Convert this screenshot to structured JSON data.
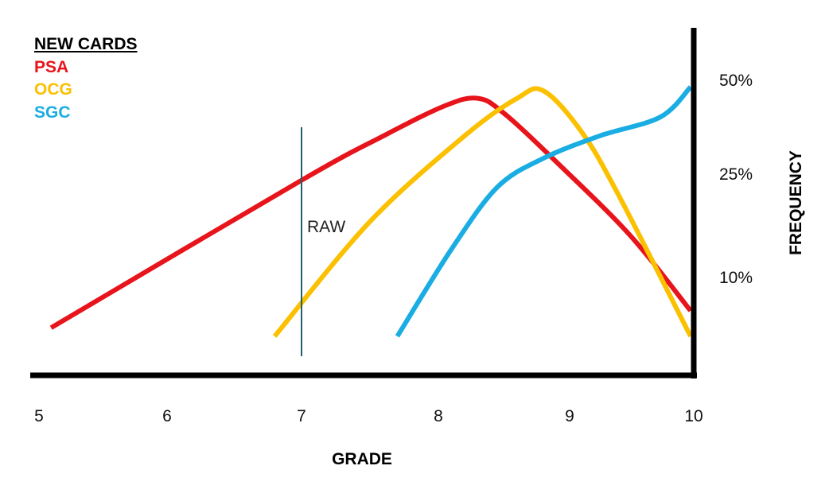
{
  "chart_data": {
    "type": "line",
    "xlabel": "GRADE",
    "ylabel": "FREQUENCY",
    "xlim": [
      5,
      10
    ],
    "x_ticks": [
      "5",
      "6",
      "7",
      "8",
      "9",
      "10"
    ],
    "y_ticks": [
      "10%",
      "25%",
      "50%"
    ],
    "legend_title": "NEW CARDS",
    "legend_position": "top-left",
    "annotation": {
      "label": "RAW",
      "x": 7
    },
    "series": [
      {
        "name": "PSA",
        "color": "#e8141b",
        "points": [
          [
            5.1,
            4
          ],
          [
            7,
            24
          ],
          [
            7.6,
            35
          ],
          [
            8.05,
            43
          ],
          [
            8.3,
            45
          ],
          [
            8.5,
            41
          ],
          [
            8.9,
            28
          ],
          [
            9.5,
            16
          ],
          [
            10,
            6
          ]
        ]
      },
      {
        "name": "OCG",
        "color": "#fbc000",
        "points": [
          [
            6.8,
            3
          ],
          [
            7.5,
            18
          ],
          [
            8.2,
            35
          ],
          [
            8.6,
            45
          ],
          [
            8.8,
            47
          ],
          [
            9.1,
            36
          ],
          [
            9.4,
            22
          ],
          [
            10,
            3
          ]
        ]
      },
      {
        "name": "SGC",
        "color": "#1aade3",
        "points": [
          [
            7.7,
            3
          ],
          [
            8.1,
            14
          ],
          [
            8.45,
            23
          ],
          [
            8.8,
            29
          ],
          [
            9.25,
            35
          ],
          [
            9.75,
            40
          ],
          [
            10,
            48
          ]
        ]
      }
    ]
  }
}
